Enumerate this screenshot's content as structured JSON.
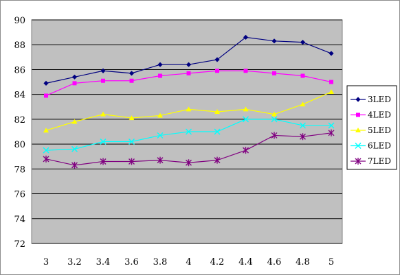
{
  "chart_data": {
    "type": "line",
    "title": "",
    "xlabel": "",
    "ylabel": "",
    "x": [
      3,
      3.2,
      3.4,
      3.6,
      3.8,
      4,
      4.2,
      4.4,
      4.6,
      4.8,
      5
    ],
    "x_tick_labels": [
      "3",
      "3.2",
      "3.4",
      "3.6",
      "3.8",
      "4",
      "4.2",
      "4.4",
      "4.6",
      "4.8",
      "5"
    ],
    "ylim": [
      72,
      90
    ],
    "y_ticks": [
      72,
      74,
      76,
      78,
      80,
      82,
      84,
      86,
      88,
      90
    ],
    "y_tick_labels": [
      "72",
      "74",
      "76",
      "78",
      "80",
      "82",
      "84",
      "86",
      "88",
      "90"
    ],
    "grid": "horizontal",
    "plot_background": "#c0c0c0",
    "legend_position": "right",
    "series": [
      {
        "name": "3LED",
        "color": "#000080",
        "marker": "diamond",
        "values": [
          84.9,
          85.4,
          85.9,
          85.7,
          86.4,
          86.4,
          86.8,
          88.6,
          88.3,
          88.2,
          87.3
        ]
      },
      {
        "name": "4LED",
        "color": "#ff00ff",
        "marker": "square",
        "values": [
          83.9,
          84.9,
          85.1,
          85.1,
          85.5,
          85.7,
          85.9,
          85.9,
          85.7,
          85.5,
          85.0
        ]
      },
      {
        "name": "5LED",
        "color": "#ffff00",
        "marker": "triangle",
        "values": [
          81.1,
          81.8,
          82.4,
          82.1,
          82.3,
          82.8,
          82.6,
          82.8,
          82.4,
          83.2,
          84.2
        ]
      },
      {
        "name": "6LED",
        "color": "#00ffff",
        "marker": "x",
        "values": [
          79.5,
          79.6,
          80.2,
          80.2,
          80.7,
          81.0,
          81.0,
          82.0,
          82.0,
          81.5,
          81.5
        ]
      },
      {
        "name": "7LED",
        "color": "#800080",
        "marker": "star",
        "values": [
          78.8,
          78.3,
          78.6,
          78.6,
          78.7,
          78.5,
          78.7,
          79.5,
          80.7,
          80.6,
          80.9
        ]
      }
    ]
  }
}
